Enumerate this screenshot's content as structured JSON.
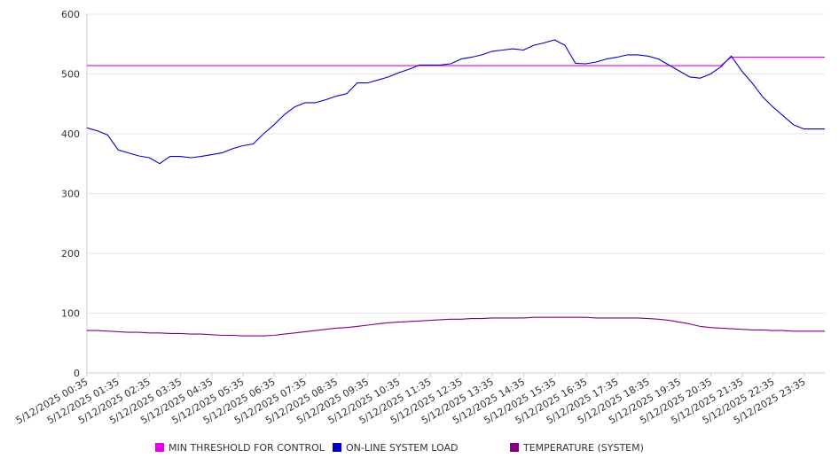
{
  "chart_data": {
    "type": "line",
    "title": "",
    "xlabel": "",
    "ylabel": "",
    "ylim": [
      0,
      600
    ],
    "y_ticks": [
      0,
      100,
      200,
      300,
      400,
      500,
      600
    ],
    "grid": "horizontal",
    "legend_position": "bottom",
    "x_tick_labels": [
      "5/12/2025 00:35",
      "5/12/2025 01:35",
      "5/12/2025 02:35",
      "5/12/2025 03:35",
      "5/12/2025 04:35",
      "5/12/2025 05:35",
      "5/12/2025 06:35",
      "5/12/2025 07:35",
      "5/12/2025 08:35",
      "5/12/2025 09:35",
      "5/12/2025 10:35",
      "5/12/2025 11:35",
      "5/12/2025 12:35",
      "5/12/2025 13:35",
      "5/12/2025 14:35",
      "5/12/2025 15:35",
      "5/12/2025 16:35",
      "5/12/2025 17:35",
      "5/12/2025 18:35",
      "5/12/2025 19:35",
      "5/12/2025 20:35",
      "5/12/2025 21:35",
      "5/12/2025 22:35",
      "5/12/2025 23:35"
    ],
    "x": [
      "00:35",
      "00:55",
      "01:15",
      "01:35",
      "01:55",
      "02:15",
      "02:35",
      "02:55",
      "03:15",
      "03:35",
      "03:55",
      "04:15",
      "04:35",
      "04:55",
      "05:15",
      "05:35",
      "05:55",
      "06:15",
      "06:35",
      "06:55",
      "07:15",
      "07:35",
      "07:55",
      "08:15",
      "08:35",
      "08:55",
      "09:15",
      "09:35",
      "09:55",
      "10:15",
      "10:35",
      "10:55",
      "11:15",
      "11:35",
      "11:55",
      "12:15",
      "12:35",
      "12:55",
      "13:15",
      "13:35",
      "13:55",
      "14:15",
      "14:35",
      "14:55",
      "15:15",
      "15:35",
      "15:55",
      "16:15",
      "16:35",
      "16:55",
      "17:15",
      "17:35",
      "17:55",
      "18:15",
      "18:35",
      "18:55",
      "19:15",
      "19:35",
      "19:55",
      "20:15",
      "20:35",
      "20:55",
      "21:15",
      "21:35",
      "21:55",
      "22:15",
      "22:35",
      "22:55",
      "23:15",
      "23:35",
      "23:55",
      "00:15"
    ],
    "series": [
      {
        "name": "MIN THRESHOLD FOR CONTROL",
        "color": "#e600e6",
        "values": [
          514,
          514,
          514,
          514,
          514,
          514,
          514,
          514,
          514,
          514,
          514,
          514,
          514,
          514,
          514,
          514,
          514,
          514,
          514,
          514,
          514,
          514,
          514,
          514,
          514,
          514,
          514,
          514,
          514,
          514,
          514,
          514,
          514,
          514,
          514,
          514,
          514,
          514,
          514,
          514,
          514,
          514,
          514,
          514,
          514,
          514,
          514,
          514,
          514,
          514,
          514,
          514,
          514,
          514,
          514,
          514,
          514,
          514,
          514,
          514,
          514,
          514,
          528,
          528,
          528,
          528,
          528,
          528,
          528,
          528,
          528,
          528
        ]
      },
      {
        "name": "ON-LINE SYSTEM LOAD",
        "color": "#0000cc",
        "values": [
          410,
          405,
          398,
          373,
          368,
          363,
          360,
          350,
          362,
          362,
          360,
          362,
          365,
          368,
          375,
          380,
          383,
          400,
          415,
          432,
          445,
          452,
          452,
          457,
          463,
          467,
          485,
          485,
          490,
          495,
          502,
          508,
          515,
          515,
          515,
          517,
          525,
          528,
          532,
          538,
          540,
          542,
          540,
          548,
          552,
          557,
          548,
          518,
          517,
          520,
          525,
          528,
          532,
          532,
          530,
          525,
          515,
          505,
          495,
          493,
          500,
          512,
          530,
          505,
          485,
          462,
          445,
          430,
          415,
          408,
          408,
          408
        ]
      },
      {
        "name": "TEMPERATURE (SYSTEM)",
        "color": "#800080",
        "values": [
          71,
          71,
          70,
          69,
          68,
          68,
          67,
          67,
          66,
          66,
          65,
          65,
          64,
          63,
          63,
          62,
          62,
          62,
          63,
          65,
          67,
          69,
          71,
          73,
          75,
          76,
          78,
          80,
          82,
          84,
          85,
          86,
          87,
          88,
          89,
          90,
          90,
          91,
          91,
          92,
          92,
          92,
          92,
          93,
          93,
          93,
          93,
          93,
          93,
          92,
          92,
          92,
          92,
          92,
          91,
          90,
          88,
          85,
          82,
          78,
          76,
          75,
          74,
          73,
          72,
          72,
          71,
          71,
          70,
          70,
          70,
          70
        ]
      }
    ]
  }
}
